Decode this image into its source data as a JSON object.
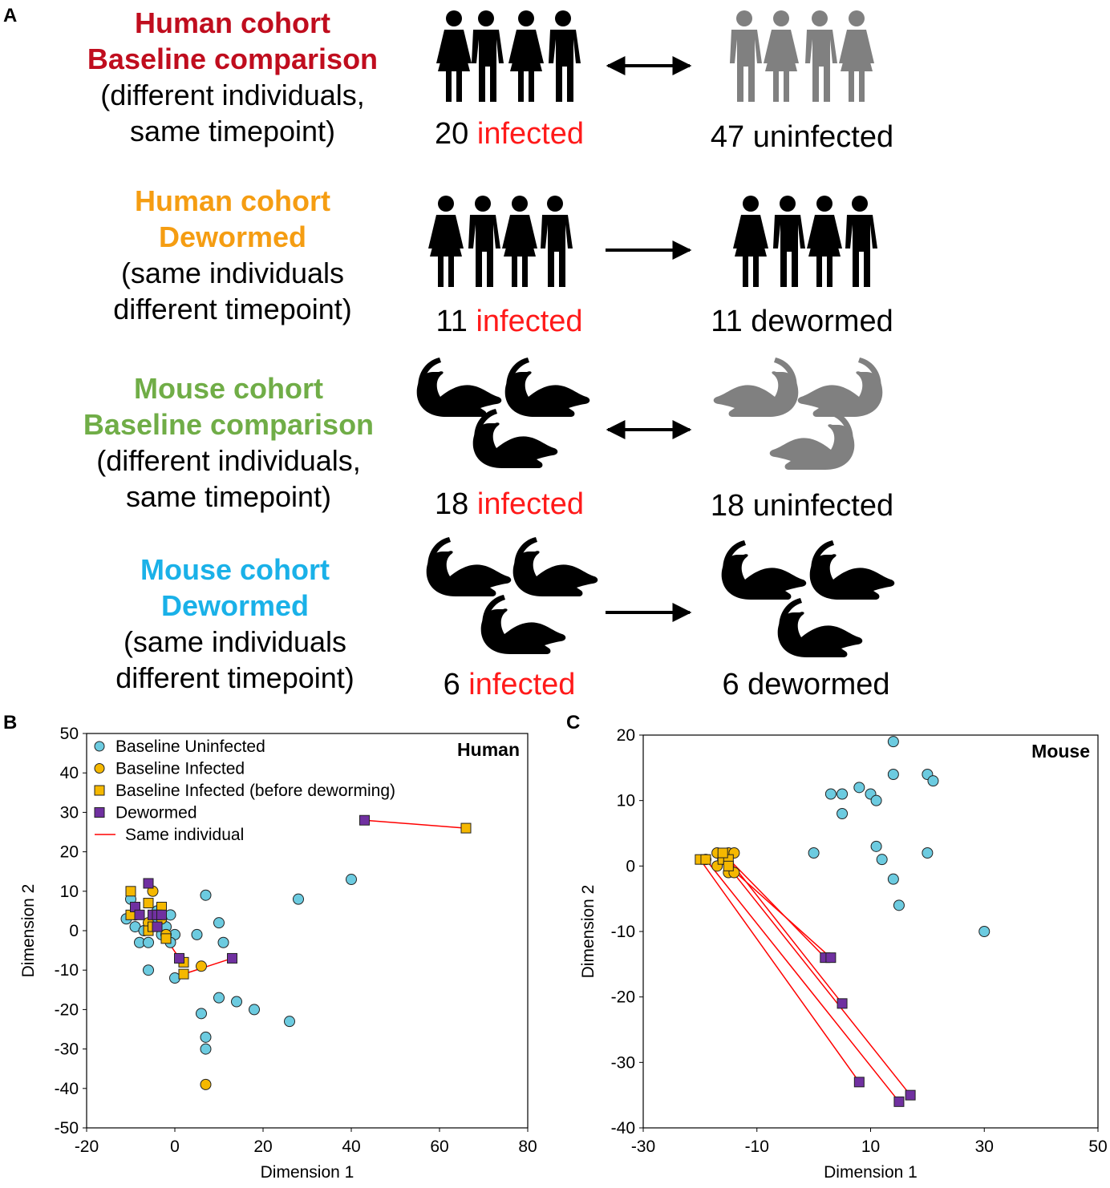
{
  "figure": {
    "panel_a_letter": "A",
    "panel_b_letter": "B",
    "panel_c_letter": "C"
  },
  "colors": {
    "human_baseline": "#c00d1e",
    "human_dewormed": "#f59d12",
    "mouse_baseline": "#70ad47",
    "mouse_dewormed": "#1ab1e8",
    "infected_word": "#ff1a1a",
    "uninfected_icon": "#808080"
  },
  "cohorts": [
    {
      "title_line1": "Human cohort",
      "title_line2": "Baseline comparison",
      "desc_line1": "(different individuals,",
      "desc_line2": "same timepoint)",
      "left_number": "20",
      "left_word": "infected",
      "right_label": "47 uninfected",
      "arrow": "double",
      "icon": "people-icon",
      "right_icon_color": "gray"
    },
    {
      "title_line1": "Human cohort",
      "title_line2": "Dewormed",
      "desc_line1": "(same individuals",
      "desc_line2": "different timepoint)",
      "left_number": "11",
      "left_word": "infected",
      "right_label": "11 dewormed",
      "arrow": "single",
      "icon": "people-icon",
      "right_icon_color": "black"
    },
    {
      "title_line1": "Mouse cohort",
      "title_line2": "Baseline comparison",
      "desc_line1": "(different individuals,",
      "desc_line2": "same timepoint)",
      "left_number": "18",
      "left_word": "infected",
      "right_label": "18 uninfected",
      "arrow": "double",
      "icon": "mouse-icon",
      "right_icon_color": "gray"
    },
    {
      "title_line1": "Mouse cohort",
      "title_line2": "Dewormed",
      "desc_line1": "(same individuals",
      "desc_line2": "different timepoint)",
      "left_number": "6",
      "left_word": "infected",
      "right_label": "6 dewormed",
      "arrow": "single",
      "icon": "mouse-icon",
      "right_icon_color": "black"
    }
  ],
  "chart_data": [
    {
      "type": "scatter",
      "title": "Human",
      "xlabel": "Dimension 1",
      "ylabel": "Dimension 2",
      "xlim": [
        -20,
        80
      ],
      "ylim": [
        -50,
        50
      ],
      "xticks": [
        -20,
        0,
        20,
        40,
        60,
        80
      ],
      "yticks": [
        -50,
        -40,
        -30,
        -20,
        -10,
        0,
        10,
        20,
        30,
        40,
        50
      ],
      "legend": [
        {
          "label": "Baseline Uninfected",
          "marker": "circle",
          "color": "#6ccbe0"
        },
        {
          "label": "Baseline Infected",
          "marker": "circle",
          "color": "#f5b800"
        },
        {
          "label": "Baseline Infected (before deworming)",
          "marker": "square",
          "color": "#f5b800"
        },
        {
          "label": "Dewormed",
          "marker": "square",
          "color": "#7030a0"
        },
        {
          "label": "Same individual",
          "marker": "line",
          "color": "#ff0000"
        }
      ],
      "series": [
        {
          "name": "Baseline Uninfected",
          "points": [
            [
              -11,
              3
            ],
            [
              -10,
              8
            ],
            [
              -9,
              1
            ],
            [
              -8,
              -3
            ],
            [
              -7,
              0
            ],
            [
              -6,
              -3
            ],
            [
              -6,
              -10
            ],
            [
              -5,
              2
            ],
            [
              -4,
              5
            ],
            [
              -3,
              -1
            ],
            [
              -2,
              1
            ],
            [
              -1,
              4
            ],
            [
              0,
              -1
            ],
            [
              -1,
              -3
            ],
            [
              0,
              -12
            ],
            [
              5,
              -1
            ],
            [
              7,
              9
            ],
            [
              10,
              2
            ],
            [
              11,
              -3
            ],
            [
              6,
              -21
            ],
            [
              7,
              -27
            ],
            [
              7,
              -30
            ],
            [
              10,
              -17
            ],
            [
              14,
              -18
            ],
            [
              18,
              -20
            ],
            [
              26,
              -23
            ],
            [
              28,
              8
            ],
            [
              40,
              13
            ]
          ]
        },
        {
          "name": "Baseline Infected",
          "points": [
            [
              -9,
              4
            ],
            [
              -6,
              2
            ],
            [
              -5,
              10
            ],
            [
              -3,
              3
            ],
            [
              -2,
              -1
            ],
            [
              6,
              -9
            ],
            [
              7,
              -39
            ]
          ]
        },
        {
          "name": "Baseline Infected (before deworming)",
          "points": [
            [
              -10,
              10
            ],
            [
              -10,
              4
            ],
            [
              -6,
              7
            ],
            [
              -3,
              6
            ],
            [
              -6,
              0
            ],
            [
              -5,
              1
            ],
            [
              -2,
              -2
            ],
            [
              2,
              -8
            ],
            [
              2,
              -11
            ],
            [
              66,
              26
            ]
          ]
        },
        {
          "name": "Dewormed",
          "points": [
            [
              -9,
              6
            ],
            [
              -8,
              4
            ],
            [
              -6,
              12
            ],
            [
              -5,
              4
            ],
            [
              -4,
              1
            ],
            [
              -4,
              4
            ],
            [
              -3,
              4
            ],
            [
              1,
              -7
            ],
            [
              13,
              -7
            ],
            [
              43,
              28
            ]
          ]
        }
      ],
      "links": [
        [
          [
            43,
            28
          ],
          [
            66,
            26
          ]
        ],
        [
          [
            13,
            -7
          ],
          [
            2,
            -11
          ]
        ],
        [
          [
            1,
            -7
          ],
          [
            -2,
            -2
          ]
        ],
        [
          [
            -6,
            12
          ],
          [
            -5,
            10
          ]
        ],
        [
          [
            -4,
            1
          ],
          [
            -5,
            4
          ]
        ],
        [
          [
            -9,
            6
          ],
          [
            -10,
            4
          ]
        ]
      ]
    },
    {
      "type": "scatter",
      "title": "Mouse",
      "xlabel": "Dimension 1",
      "ylabel": "Dimension 2",
      "xlim": [
        -30,
        50
      ],
      "ylim": [
        -40,
        20
      ],
      "xticks": [
        -30,
        -10,
        10,
        30,
        50
      ],
      "yticks": [
        -40,
        -30,
        -20,
        -10,
        0,
        10,
        20
      ],
      "series": [
        {
          "name": "Baseline Uninfected",
          "points": [
            [
              14,
              19
            ],
            [
              20,
              14
            ],
            [
              21,
              13
            ],
            [
              14,
              14
            ],
            [
              8,
              12
            ],
            [
              10,
              11
            ],
            [
              11,
              10
            ],
            [
              3,
              11
            ],
            [
              5,
              11
            ],
            [
              5,
              8
            ],
            [
              0,
              2
            ],
            [
              11,
              3
            ],
            [
              12,
              1
            ],
            [
              20,
              2
            ],
            [
              14,
              -2
            ],
            [
              15,
              -6
            ],
            [
              30,
              -10
            ]
          ]
        },
        {
          "name": "Baseline Infected",
          "points": [
            [
              -19,
              1
            ],
            [
              -17,
              2
            ],
            [
              -16,
              1
            ],
            [
              -15,
              2
            ],
            [
              -14,
              2
            ],
            [
              -17,
              0
            ],
            [
              -15,
              -1
            ],
            [
              -14,
              -1
            ]
          ]
        },
        {
          "name": "Baseline Infected (before deworming)",
          "points": [
            [
              -20,
              1
            ],
            [
              -19,
              1
            ],
            [
              -16,
              1
            ],
            [
              -15,
              1
            ],
            [
              -16,
              2
            ],
            [
              -15,
              0
            ]
          ]
        },
        {
          "name": "Dewormed",
          "points": [
            [
              2,
              -14
            ],
            [
              3,
              -14
            ],
            [
              5,
              -21
            ],
            [
              8,
              -33
            ],
            [
              15,
              -36
            ],
            [
              17,
              -35
            ]
          ]
        }
      ],
      "links": [
        [
          [
            -20,
            1
          ],
          [
            8,
            -33
          ]
        ],
        [
          [
            -19,
            1
          ],
          [
            15,
            -36
          ]
        ],
        [
          [
            -16,
            1
          ],
          [
            17,
            -35
          ]
        ],
        [
          [
            -15,
            1
          ],
          [
            5,
            -21
          ]
        ],
        [
          [
            -16,
            2
          ],
          [
            2,
            -14
          ]
        ],
        [
          [
            -15,
            0
          ],
          [
            3,
            -14
          ]
        ]
      ]
    }
  ]
}
